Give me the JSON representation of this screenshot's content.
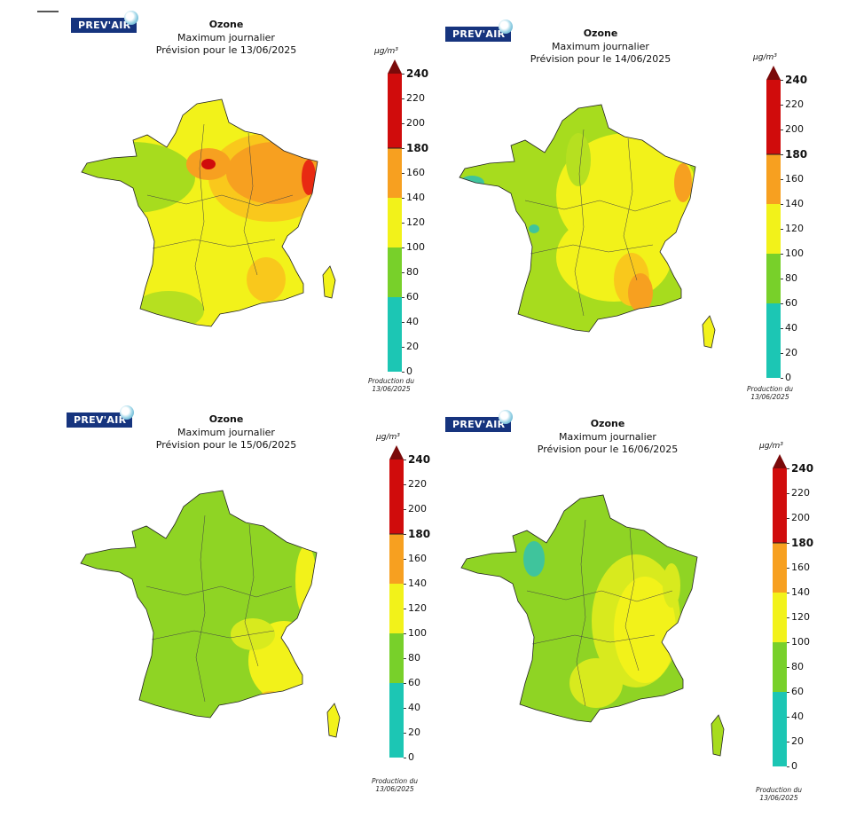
{
  "panels": [
    {
      "logo": "PREV'AIR",
      "title": "Ozone",
      "subtitle": "Maximum journalier",
      "forecast": "Prévision pour le 13/06/2025",
      "unit": "μg/m³",
      "production_label": "Production du",
      "production_date": "13/06/2025",
      "fill_level": "high",
      "colorbar_ticks": [
        "240",
        "220",
        "200",
        "180",
        "160",
        "140",
        "120",
        "100",
        "80",
        "60",
        "40",
        "20",
        "0"
      ]
    },
    {
      "logo": "PREV'AIR",
      "title": "Ozone",
      "subtitle": "Maximum journalier",
      "forecast": "Prévision pour le 14/06/2025",
      "unit": "μg/m³",
      "production_label": "Production du",
      "production_date": "13/06/2025",
      "fill_level": "mid",
      "colorbar_ticks": [
        "240",
        "220",
        "200",
        "180",
        "160",
        "140",
        "120",
        "100",
        "80",
        "60",
        "40",
        "20",
        "0"
      ]
    },
    {
      "logo": "PREV'AIR",
      "title": "Ozone",
      "subtitle": "Maximum journalier",
      "forecast": "Prévision pour le 15/06/2025",
      "unit": "μg/m³",
      "production_label": "Production du",
      "production_date": "13/06/2025",
      "fill_level": "low",
      "colorbar_ticks": [
        "240",
        "220",
        "200",
        "180",
        "160",
        "140",
        "120",
        "100",
        "80",
        "60",
        "40",
        "20",
        "0"
      ]
    },
    {
      "logo": "PREV'AIR",
      "title": "Ozone",
      "subtitle": "Maximum journalier",
      "forecast": "Prévision pour le 16/06/2025",
      "unit": "μg/m³",
      "production_label": "Production du",
      "production_date": "13/06/2025",
      "fill_level": "low",
      "colorbar_ticks": [
        "240",
        "220",
        "200",
        "180",
        "160",
        "140",
        "120",
        "100",
        "80",
        "60",
        "40",
        "20",
        "0"
      ]
    }
  ],
  "colorscale": [
    "#1cc6b4",
    "#3fc49c",
    "#78d02a",
    "#a7dc1e",
    "#f2f21a",
    "#f9c81c",
    "#f7a020",
    "#f06a1a",
    "#e82a12",
    "#d00c0c",
    "#7a0a0a"
  ]
}
